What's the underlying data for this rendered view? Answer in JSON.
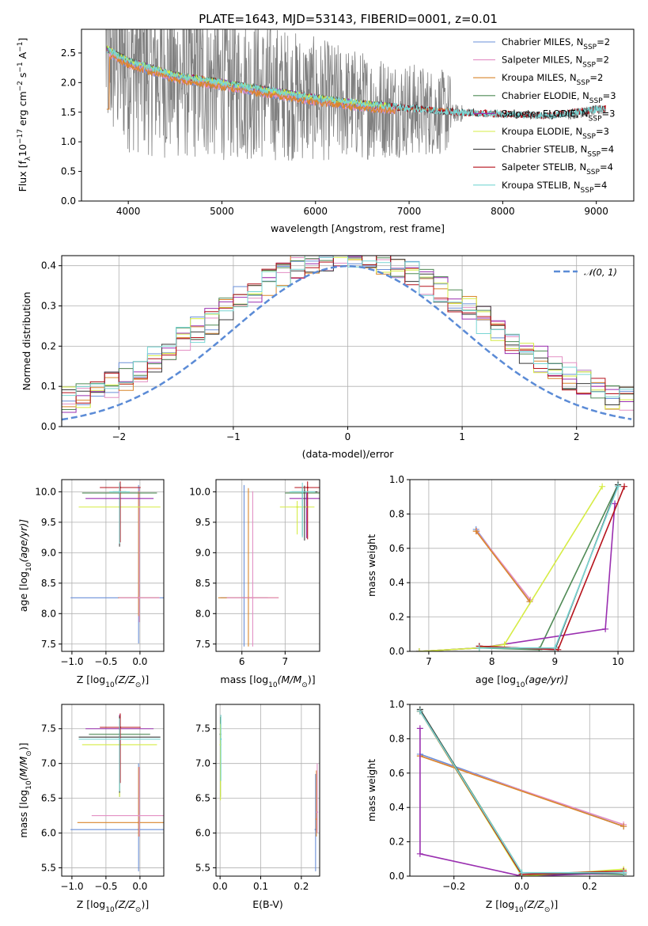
{
  "title": "PLATE=1643, MJD=53143, FIBERID=0001, z=0.01",
  "colors": {
    "Chabrier MILES": "#6a8fd8",
    "Salpeter MILES": "#e38fc4",
    "Kroupa MILES": "#d9862b",
    "Chabrier ELODIE": "#4f8a55",
    "Salpeter ELODIE": "#9a2fb0",
    "Kroupa ELODIE": "#d6ec45",
    "Chabrier STELIB": "#3a3a3a",
    "Salpeter STELIB": "#b5121b",
    "Kroupa STELIB": "#78d6d4",
    "spectrum": "#808080",
    "normal_curve": "#5b8bd6"
  },
  "chart_data": [
    {
      "id": "spectrum",
      "type": "line",
      "xlabel": "wavelength [Angstrom, rest frame]",
      "ylabel": "Flux [f",
      "ylabel_sub": "λ",
      "ylabel_mid": "10",
      "ylabel_sup1": "−17",
      "ylabel_mid2": " erg cm",
      "ylabel_sup2": "−2",
      "ylabel_mid3": " s",
      "ylabel_sup3": "−1",
      "ylabel_mid4": " A",
      "ylabel_sup4": "−1",
      "ylabel_end": "]",
      "xlim": [
        3500,
        9400
      ],
      "ylim": [
        0,
        2.9
      ],
      "xticks": [
        4000,
        5000,
        6000,
        7000,
        8000,
        9000
      ],
      "yticks": [
        "0.0",
        "0.5",
        "1.0",
        "1.5",
        "2.0",
        "2.5"
      ],
      "legend_position": "top-right",
      "legend": [
        {
          "name": "Chabrier MILES",
          "n": "2"
        },
        {
          "name": "Salpeter MILES",
          "n": "2"
        },
        {
          "name": "Kroupa MILES",
          "n": "2"
        },
        {
          "name": "Chabrier ELODIE",
          "n": "3"
        },
        {
          "name": "Salpeter ELODIE",
          "n": "3"
        },
        {
          "name": "Kroupa ELODIE",
          "n": "3"
        },
        {
          "name": "Chabrier STELIB",
          "n": "4"
        },
        {
          "name": "Salpeter STELIB",
          "n": "4"
        },
        {
          "name": "Kroupa STELIB",
          "n": "4"
        }
      ],
      "legend_prefix": ", N",
      "legend_sub": "SSP",
      "legend_eq": "=",
      "data_x_range": [
        3760,
        9100
      ],
      "model_trend": [
        {
          "x": 3760,
          "y": 2.55
        },
        {
          "x": 4000,
          "y": 2.35
        },
        {
          "x": 4500,
          "y": 2.1
        },
        {
          "x": 5000,
          "y": 1.98
        },
        {
          "x": 5500,
          "y": 1.85
        },
        {
          "x": 6000,
          "y": 1.72
        },
        {
          "x": 6500,
          "y": 1.62
        },
        {
          "x": 7000,
          "y": 1.55
        },
        {
          "x": 7500,
          "y": 1.48
        },
        {
          "x": 8000,
          "y": 1.45
        },
        {
          "x": 8500,
          "y": 1.42
        },
        {
          "x": 9100,
          "y": 1.55
        }
      ]
    },
    {
      "id": "residuals",
      "type": "line",
      "xlabel": "(data-model)/error",
      "ylabel": "Normed distribution",
      "xlim": [
        -2.5,
        2.5
      ],
      "ylim": [
        0,
        0.425
      ],
      "xticks": [
        -2,
        -1,
        0,
        1,
        2
      ],
      "xtick_labels": [
        "−2",
        "−1",
        "0",
        "1",
        "2"
      ],
      "yticks": [
        "0.0",
        "0.1",
        "0.2",
        "0.3",
        "0.4"
      ],
      "grid": true,
      "legend_position": "top-right",
      "legend_label": "𝒩(0, 1)",
      "curve": "standard normal density"
    },
    {
      "id": "age-vs-Z",
      "type": "scatter",
      "xlabel": "Z [log",
      "xlabel_sub": "10",
      "xlabel_rest": "(Z/Z",
      "xlabel_sub2": "⊙",
      "xlabel_end": ")]",
      "ylabel": "age  [log",
      "ylabel_sub": "10",
      "ylabel_rest": "(age/yr)]",
      "xlim": [
        -1.15,
        0.35
      ],
      "ylim": [
        7.38,
        10.2
      ],
      "xticks": [
        -1.0,
        -0.5,
        0.0
      ],
      "xtick_labels": [
        "−1.0",
        "−0.5",
        "0.0"
      ],
      "yticks": [
        7.5,
        8.0,
        8.5,
        9.0,
        9.5,
        10.0
      ],
      "ytick_labels": [
        "7.5",
        "8.0",
        "8.5",
        "9.0",
        "9.5",
        "10.0"
      ],
      "grid": true,
      "errorbars": [
        {
          "s": "Chabrier MILES",
          "x": -0.02,
          "y": 8.26,
          "xerr": 1.0,
          "yerr": [
            0.75,
            1.85
          ]
        },
        {
          "s": "Kroupa MILES",
          "x": -0.02,
          "y": 8.26,
          "xerr": 0.3,
          "yerr": [
            0.3,
            1.75
          ]
        },
        {
          "s": "Salpeter MILES",
          "x": -0.01,
          "y": 8.26,
          "xerr": 0.3,
          "yerr": [
            0.4,
            1.8
          ]
        },
        {
          "s": "Chabrier ELODIE",
          "x": -0.3,
          "y": 9.98,
          "xerr": 0.55,
          "yerr": [
            0.75,
            0.15
          ]
        },
        {
          "s": "Salpeter ELODIE",
          "x": -0.3,
          "y": 9.89,
          "xerr": 0.5,
          "yerr": [
            0.65,
            0.1
          ]
        },
        {
          "s": "Kroupa ELODIE",
          "x": -0.3,
          "y": 9.75,
          "xerr": 0.6,
          "yerr": [
            0.45,
            0.1
          ]
        },
        {
          "s": "Chabrier STELIB",
          "x": -0.3,
          "y": 10.0,
          "xerr": 0.1,
          "yerr": [
            0.9,
            0.1
          ]
        },
        {
          "s": "Salpeter STELIB",
          "x": -0.29,
          "y": 10.07,
          "xerr": 0.3,
          "yerr": [
            0.9,
            0.1
          ]
        },
        {
          "s": "Kroupa STELIB",
          "x": -0.3,
          "y": 10.0,
          "xerr": 0.15,
          "yerr": [
            0.85,
            0.15
          ]
        }
      ]
    },
    {
      "id": "age-vs-mass",
      "type": "scatter",
      "xlabel": "mass [log",
      "xlabel_sub": "10",
      "xlabel_rest": "(M/M",
      "xlabel_sub2": "⊙",
      "xlabel_end": ")]",
      "xlim": [
        5.4,
        7.8
      ],
      "ylim": [
        7.38,
        10.2
      ],
      "xticks": [
        6,
        7
      ],
      "xtick_labels": [
        "6",
        "7"
      ],
      "yticks": [
        7.5,
        8.0,
        8.5,
        9.0,
        9.5,
        10.0
      ],
      "ytick_labels": [
        "7.5",
        "8.0",
        "8.5",
        "9.0",
        "9.5",
        "10.0"
      ],
      "grid": true,
      "errorbars": [
        {
          "s": "Chabrier MILES",
          "x": 6.05,
          "y": 8.26,
          "xerr": 0.55,
          "yerr": [
            0.8,
            1.85
          ]
        },
        {
          "s": "Kroupa MILES",
          "x": 6.15,
          "y": 8.26,
          "xerr": 0.7,
          "yerr": [
            0.8,
            1.8
          ]
        },
        {
          "s": "Salpeter MILES",
          "x": 6.25,
          "y": 8.26,
          "xerr": 0.6,
          "yerr": [
            0.8,
            1.75
          ]
        },
        {
          "s": "Chabrier ELODIE",
          "x": 7.4,
          "y": 9.98,
          "xerr": 0.4,
          "yerr": [
            0.7,
            0.1
          ]
        },
        {
          "s": "Salpeter ELODIE",
          "x": 7.5,
          "y": 9.89,
          "xerr": 0.4,
          "yerr": [
            0.65,
            0.1
          ]
        },
        {
          "s": "Kroupa ELODIE",
          "x": 7.28,
          "y": 9.75,
          "xerr": 0.4,
          "yerr": [
            0.45,
            0.1
          ]
        },
        {
          "s": "Chabrier STELIB",
          "x": 7.45,
          "y": 10.0,
          "xerr": 0.3,
          "yerr": [
            0.8,
            0.1
          ]
        },
        {
          "s": "Salpeter STELIB",
          "x": 7.52,
          "y": 10.07,
          "xerr": 0.3,
          "yerr": [
            0.85,
            0.1
          ]
        },
        {
          "s": "Kroupa STELIB",
          "x": 7.4,
          "y": 10.0,
          "xerr": 0.3,
          "yerr": [
            0.75,
            0.15
          ]
        }
      ]
    },
    {
      "id": "weight-vs-age",
      "type": "line",
      "xlabel": "age  [log",
      "xlabel_sub": "10",
      "xlabel_rest": "(age/yr)]",
      "ylabel": "mass weight",
      "xlim": [
        6.7,
        10.25
      ],
      "ylim": [
        0,
        1.0
      ],
      "xticks": [
        7,
        8,
        9,
        10
      ],
      "xtick_labels": [
        "7",
        "8",
        "9",
        "10"
      ],
      "yticks": [
        0.0,
        0.2,
        0.4,
        0.6,
        0.8,
        1.0
      ],
      "ytick_labels": [
        "0.0",
        "0.2",
        "0.4",
        "0.6",
        "0.8",
        "1.0"
      ],
      "grid": true,
      "series": [
        {
          "s": "Chabrier MILES",
          "x": [
            7.75,
            8.6
          ],
          "y": [
            0.71,
            0.29
          ]
        },
        {
          "s": "Salpeter MILES",
          "x": [
            7.76,
            8.61
          ],
          "y": [
            0.7,
            0.3
          ]
        },
        {
          "s": "Kroupa MILES",
          "x": [
            7.75,
            8.6
          ],
          "y": [
            0.7,
            0.29
          ]
        },
        {
          "s": "Chabrier ELODIE",
          "x": [
            6.85,
            7.8,
            8.75,
            10.0
          ],
          "y": [
            0.0,
            0.02,
            0.01,
            0.97
          ]
        },
        {
          "s": "Salpeter ELODIE",
          "x": [
            6.85,
            7.8,
            9.8,
            9.95
          ],
          "y": [
            0.0,
            0.02,
            0.13,
            0.86
          ]
        },
        {
          "s": "Kroupa ELODIE",
          "x": [
            6.85,
            7.8,
            8.2,
            9.75
          ],
          "y": [
            0.0,
            0.02,
            0.04,
            0.96
          ]
        },
        {
          "s": "Chabrier STELIB",
          "x": [
            7.8,
            9.0,
            10.0
          ],
          "y": [
            0.03,
            0.01,
            0.97
          ]
        },
        {
          "s": "Salpeter STELIB",
          "x": [
            7.8,
            9.05,
            10.1
          ],
          "y": [
            0.03,
            0.01,
            0.96
          ]
        },
        {
          "s": "Kroupa STELIB",
          "x": [
            7.8,
            9.0,
            10.0
          ],
          "y": [
            0.02,
            0.02,
            0.96
          ]
        }
      ]
    },
    {
      "id": "mass-vs-Z",
      "type": "scatter",
      "xlabel": "Z [log",
      "xlabel_sub": "10",
      "xlabel_rest": "(Z/Z",
      "xlabel_sub2": "⊙",
      "xlabel_end": ")]",
      "ylabel": "mass [log",
      "ylabel_sub": "10",
      "ylabel_rest": "(M/M",
      "ylabel_sub2": "⊙",
      "ylabel_end": ")]",
      "xlim": [
        -1.15,
        0.35
      ],
      "ylim": [
        5.38,
        7.85
      ],
      "xticks": [
        -1.0,
        -0.5,
        0.0
      ],
      "xtick_labels": [
        "−1.0",
        "−0.5",
        "0.0"
      ],
      "yticks": [
        5.5,
        6.0,
        6.5,
        7.0,
        7.5
      ],
      "ytick_labels": [
        "5.5",
        "6.0",
        "6.5",
        "7.0",
        "7.5"
      ],
      "grid": true,
      "errorbars": [
        {
          "s": "Chabrier MILES",
          "x": -0.02,
          "y": 6.05,
          "xerr": 1.0,
          "yerr": [
            0.6,
            0.95
          ]
        },
        {
          "s": "Kroupa MILES",
          "x": -0.02,
          "y": 6.15,
          "xerr": 0.9,
          "yerr": [
            0.2,
            0.8
          ]
        },
        {
          "s": "Salpeter MILES",
          "x": -0.01,
          "y": 6.25,
          "xerr": 0.7,
          "yerr": [
            0.3,
            0.7
          ]
        },
        {
          "s": "Chabrier ELODIE",
          "x": -0.3,
          "y": 7.42,
          "xerr": 0.45,
          "yerr": [
            0.9,
            0.1
          ]
        },
        {
          "s": "Salpeter ELODIE",
          "x": -0.3,
          "y": 7.5,
          "xerr": 0.5,
          "yerr": [
            0.8,
            0.2
          ]
        },
        {
          "s": "Kroupa ELODIE",
          "x": -0.3,
          "y": 7.27,
          "xerr": 0.55,
          "yerr": [
            0.75,
            0.2
          ]
        },
        {
          "s": "Chabrier STELIB",
          "x": -0.3,
          "y": 7.38,
          "xerr": 0.6,
          "yerr": [
            0.8,
            0.3
          ]
        },
        {
          "s": "Salpeter STELIB",
          "x": -0.29,
          "y": 7.52,
          "xerr": 0.3,
          "yerr": [
            0.8,
            0.2
          ]
        },
        {
          "s": "Kroupa STELIB",
          "x": -0.3,
          "y": 7.35,
          "xerr": 0.6,
          "yerr": [
            0.75,
            0.3
          ]
        }
      ]
    },
    {
      "id": "mass-vs-EBV",
      "type": "scatter",
      "xlabel": "E(B-V)",
      "xlim": [
        -0.01,
        0.245
      ],
      "ylim": [
        5.38,
        7.85
      ],
      "xticks": [
        0.0,
        0.1,
        0.2
      ],
      "xtick_labels": [
        "0.0",
        "0.1",
        "0.2"
      ],
      "yticks": [
        5.5,
        6.0,
        6.5,
        7.0,
        7.5
      ],
      "ytick_labels": [
        "5.5",
        "6.0",
        "6.5",
        "7.0",
        "7.5"
      ],
      "grid": true,
      "errorbars": [
        {
          "s": "Chabrier MILES",
          "x": 0.235,
          "y": 6.05,
          "xerr": 0.0,
          "yerr": [
            0.6,
            0.8
          ]
        },
        {
          "s": "Kroupa MILES",
          "x": 0.237,
          "y": 6.2,
          "xerr": 0.0,
          "yerr": [
            0.25,
            0.7
          ]
        },
        {
          "s": "Salpeter MILES",
          "x": 0.239,
          "y": 6.3,
          "xerr": 0.0,
          "yerr": [
            0.3,
            0.7
          ]
        },
        {
          "s": "Chabrier ELODIE",
          "x": 0.001,
          "y": 7.42,
          "xerr": 0.0,
          "yerr": [
            0.9,
            0.25
          ]
        },
        {
          "s": "Kroupa ELODIE",
          "x": 0.001,
          "y": 7.27,
          "xerr": 0.0,
          "yerr": [
            0.8,
            0.3
          ]
        },
        {
          "s": "Kroupa STELIB",
          "x": 0.002,
          "y": 7.35,
          "xerr": 0.0,
          "yerr": [
            0.6,
            0.35
          ]
        }
      ]
    },
    {
      "id": "weight-vs-Z",
      "type": "line",
      "xlabel": "Z [log",
      "xlabel_sub": "10",
      "xlabel_rest": "(Z/Z",
      "xlabel_sub2": "⊙",
      "xlabel_end": ")]",
      "ylabel": "mass weight",
      "xlim": [
        -0.33,
        0.33
      ],
      "ylim": [
        0,
        1.0
      ],
      "xticks": [
        -0.2,
        0.0,
        0.2
      ],
      "xtick_labels": [
        "−0.2",
        "0.0",
        "0.2"
      ],
      "yticks": [
        0.0,
        0.2,
        0.4,
        0.6,
        0.8,
        1.0
      ],
      "ytick_labels": [
        "0.0",
        "0.2",
        "0.4",
        "0.6",
        "0.8",
        "1.0"
      ],
      "grid": true,
      "series": [
        {
          "s": "Chabrier MILES",
          "x": [
            -0.3,
            0.3
          ],
          "y": [
            0.71,
            0.29
          ]
        },
        {
          "s": "Salpeter MILES",
          "x": [
            -0.3,
            0.3
          ],
          "y": [
            0.7,
            0.3
          ]
        },
        {
          "s": "Kroupa MILES",
          "x": [
            -0.3,
            0.3
          ],
          "y": [
            0.7,
            0.29
          ]
        },
        {
          "s": "Chabrier ELODIE",
          "x": [
            -0.3,
            0.0,
            0.3
          ],
          "y": [
            0.97,
            0.02,
            0.01
          ]
        },
        {
          "s": "Salpeter ELODIE",
          "x": [
            -0.3,
            -0.3,
            0.0,
            0.3
          ],
          "y": [
            0.86,
            0.13,
            0.0,
            0.02
          ]
        },
        {
          "s": "Kroupa ELODIE",
          "x": [
            -0.3,
            0.0,
            0.3
          ],
          "y": [
            0.96,
            0.0,
            0.04
          ]
        },
        {
          "s": "Chabrier STELIB",
          "x": [
            -0.3,
            0.0,
            0.3
          ],
          "y": [
            0.97,
            0.01,
            0.02
          ]
        },
        {
          "s": "Salpeter STELIB",
          "x": [
            -0.3,
            0.0,
            0.3
          ],
          "y": [
            0.96,
            0.01,
            0.03
          ]
        },
        {
          "s": "Kroupa STELIB",
          "x": [
            -0.3,
            0.0,
            0.3
          ],
          "y": [
            0.96,
            0.02,
            0.02
          ]
        }
      ]
    }
  ]
}
